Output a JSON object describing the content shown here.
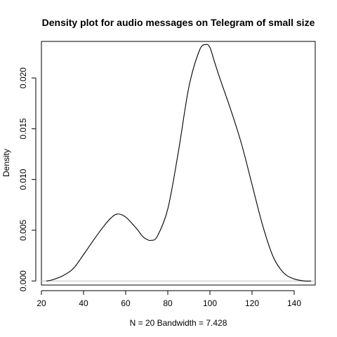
{
  "chart_data": {
    "type": "line",
    "title": "Density plot for audio messages on Telegram of small size",
    "xlabel": "N = 20   Bandwidth = 7.428",
    "ylabel": "Density",
    "xlim": [
      20.0,
      150.0
    ],
    "ylim": [
      -0.0004,
      0.0236
    ],
    "x_ticks": [
      20,
      40,
      60,
      80,
      100,
      120,
      140
    ],
    "x_tick_labels": [
      "20",
      "40",
      "60",
      "80",
      "100",
      "120",
      "140"
    ],
    "y_ticks": [
      0.0,
      0.005,
      0.01,
      0.015,
      0.02
    ],
    "y_tick_labels": [
      "0.000",
      "0.005",
      "0.010",
      "0.015",
      "0.020"
    ],
    "baseline_y": 0,
    "grid": false,
    "legend": "none",
    "colors": {
      "line": "#000000",
      "baseline": "#bebebe",
      "frame": "#000000"
    },
    "series": [
      {
        "x": [
          22.3,
          25,
          30,
          35,
          40,
          45,
          50,
          53,
          56,
          60,
          65,
          68,
          70,
          72,
          75,
          80,
          85,
          90,
          95,
          98,
          100,
          102,
          105,
          110,
          115,
          120,
          125,
          130,
          135,
          140,
          145,
          148
        ],
        "values": [
          0.0,
          0.0001,
          0.0005,
          0.0012,
          0.0026,
          0.0041,
          0.0055,
          0.0062,
          0.0066,
          0.0063,
          0.0052,
          0.0044,
          0.0041,
          0.004,
          0.0044,
          0.0071,
          0.0127,
          0.0191,
          0.0227,
          0.0233,
          0.023,
          0.0217,
          0.0198,
          0.0168,
          0.0135,
          0.0095,
          0.0055,
          0.0024,
          0.0008,
          0.0002,
          0.0,
          0.0
        ]
      }
    ]
  }
}
